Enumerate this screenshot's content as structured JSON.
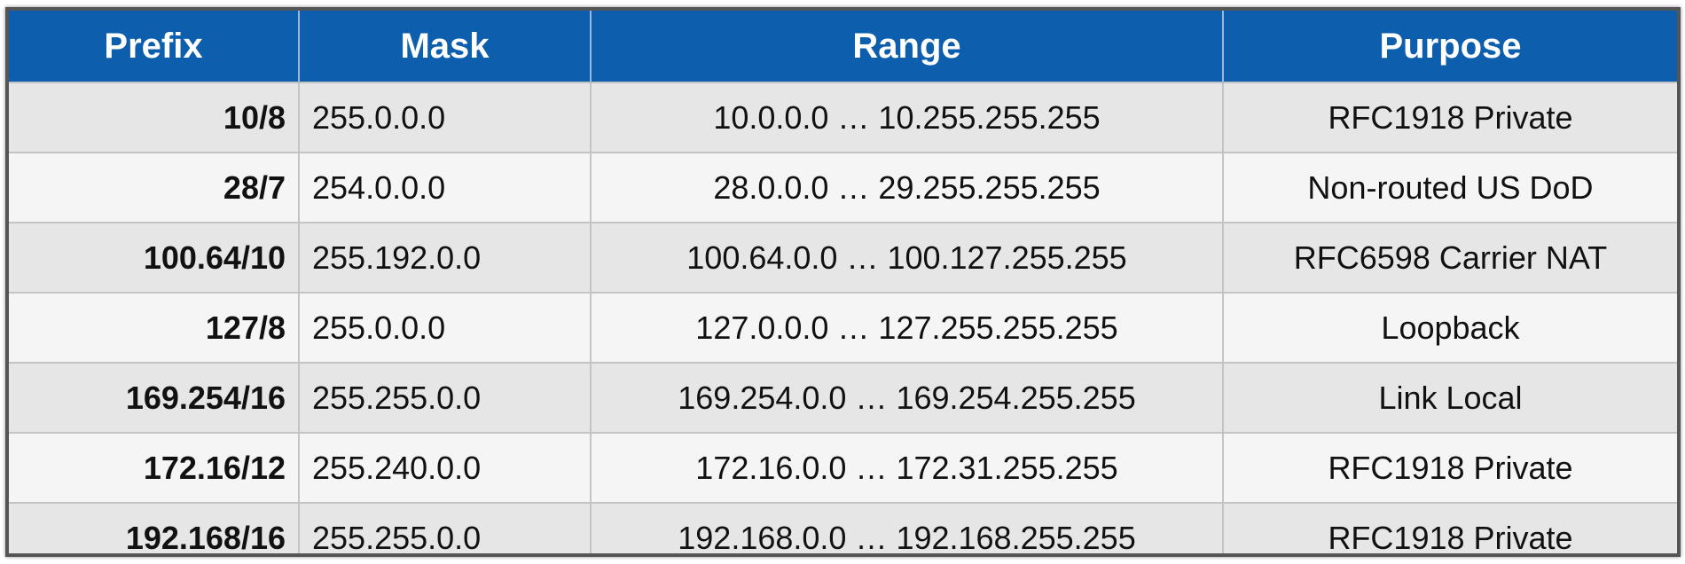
{
  "table": {
    "headers": {
      "prefix": "Prefix",
      "mask": "Mask",
      "range": "Range",
      "purpose": "Purpose"
    },
    "rows": [
      {
        "prefix": "10/8",
        "mask": "255.0.0.0",
        "range": "10.0.0.0 … 10.255.255.255",
        "purpose": "RFC1918 Private"
      },
      {
        "prefix": "28/7",
        "mask": "254.0.0.0",
        "range": "28.0.0.0 … 29.255.255.255",
        "purpose": "Non-routed US DoD"
      },
      {
        "prefix": "100.64/10",
        "mask": "255.192.0.0",
        "range": "100.64.0.0 … 100.127.255.255",
        "purpose": "RFC6598 Carrier NAT"
      },
      {
        "prefix": "127/8",
        "mask": "255.0.0.0",
        "range": "127.0.0.0 … 127.255.255.255",
        "purpose": "Loopback"
      },
      {
        "prefix": "169.254/16",
        "mask": "255.255.0.0",
        "range": "169.254.0.0 … 169.254.255.255",
        "purpose": "Link Local"
      },
      {
        "prefix": "172.16/12",
        "mask": "255.240.0.0",
        "range": "172.16.0.0 … 172.31.255.255",
        "purpose": "RFC1918 Private"
      },
      {
        "prefix": "192.168/16",
        "mask": "255.255.0.0",
        "range": "192.168.0.0 … 192.168.255.255",
        "purpose": "RFC1918 Private"
      }
    ]
  },
  "colors": {
    "header_background": "#0d5fad",
    "header_text": "#ffffff",
    "row_odd": "#e6e6e6",
    "row_even": "#f5f5f5"
  }
}
